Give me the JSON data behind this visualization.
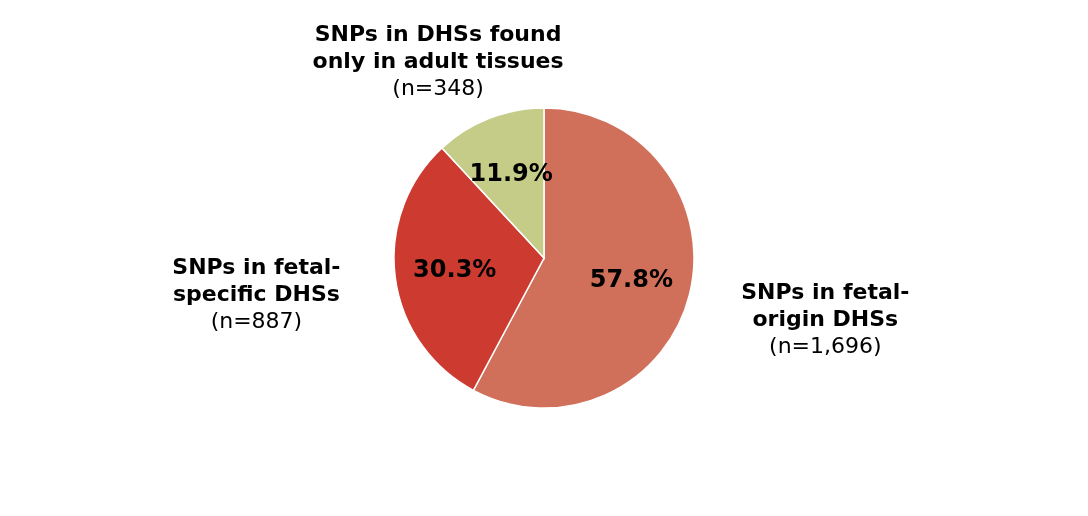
{
  "chart_data": {
    "type": "pie",
    "categories": [
      "SNPs in fetal-\norigin DHSs\n(n=1,696)",
      "SNPs in fetal-\nspecific DHSs\n(n=887)",
      "SNPs in DHSs found\nonly in adult tissues\n(n=348)"
    ],
    "values": [
      57.8,
      30.3,
      11.9
    ],
    "value_labels": [
      "57.8%",
      "30.3%",
      "11.9%"
    ],
    "colors": [
      "#d0705a",
      "#cc3a30",
      "#c5cc88"
    ]
  }
}
